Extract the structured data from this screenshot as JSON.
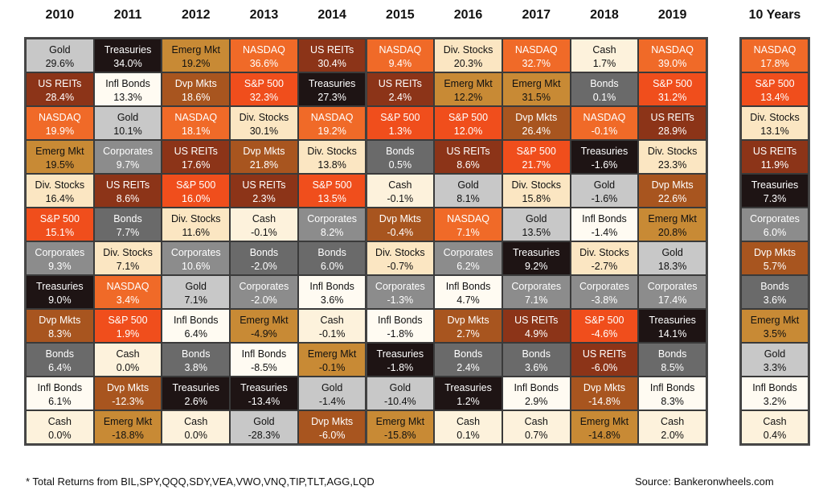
{
  "chart_data": {
    "type": "table",
    "years": [
      "2010",
      "2011",
      "2012",
      "2013",
      "2014",
      "2015",
      "2016",
      "2017",
      "2018",
      "2019"
    ],
    "summary_header": "10 Years",
    "columns": [
      [
        [
          "Gold",
          "29.6%"
        ],
        [
          "US REITs",
          "28.4%"
        ],
        [
          "NASDAQ",
          "19.9%"
        ],
        [
          "Emerg Mkt",
          "19.5%"
        ],
        [
          "Div. Stocks",
          "16.4%"
        ],
        [
          "S&P 500",
          "15.1%"
        ],
        [
          "Corporates",
          "9.3%"
        ],
        [
          "Treasuries",
          "9.0%"
        ],
        [
          "Dvp Mkts",
          "8.3%"
        ],
        [
          "Bonds",
          "6.4%"
        ],
        [
          "Infl Bonds",
          "6.1%"
        ],
        [
          "Cash",
          "0.0%"
        ]
      ],
      [
        [
          "Treasuries",
          "34.0%"
        ],
        [
          "Infl Bonds",
          "13.3%"
        ],
        [
          "Gold",
          "10.1%"
        ],
        [
          "Corporates",
          "9.7%"
        ],
        [
          "US REITs",
          "8.6%"
        ],
        [
          "Bonds",
          "7.7%"
        ],
        [
          "Div. Stocks",
          "7.1%"
        ],
        [
          "NASDAQ",
          "3.4%"
        ],
        [
          "S&P 500",
          "1.9%"
        ],
        [
          "Cash",
          "0.0%"
        ],
        [
          "Dvp Mkts",
          "-12.3%"
        ],
        [
          "Emerg Mkt",
          "-18.8%"
        ]
      ],
      [
        [
          "Emerg Mkt",
          "19.2%"
        ],
        [
          "Dvp Mkts",
          "18.6%"
        ],
        [
          "NASDAQ",
          "18.1%"
        ],
        [
          "US REITs",
          "17.6%"
        ],
        [
          "S&P 500",
          "16.0%"
        ],
        [
          "Div. Stocks",
          "11.6%"
        ],
        [
          "Corporates",
          "10.6%"
        ],
        [
          "Gold",
          "7.1%"
        ],
        [
          "Infl Bonds",
          "6.4%"
        ],
        [
          "Bonds",
          "3.8%"
        ],
        [
          "Treasuries",
          "2.6%"
        ],
        [
          "Cash",
          "0.0%"
        ]
      ],
      [
        [
          "NASDAQ",
          "36.6%"
        ],
        [
          "S&P 500",
          "32.3%"
        ],
        [
          "Div. Stocks",
          "30.1%"
        ],
        [
          "Dvp Mkts",
          "21.8%"
        ],
        [
          "US REITs",
          "2.3%"
        ],
        [
          "Cash",
          "-0.1%"
        ],
        [
          "Bonds",
          "-2.0%"
        ],
        [
          "Corporates",
          "-2.0%"
        ],
        [
          "Emerg Mkt",
          "-4.9%"
        ],
        [
          "Infl Bonds",
          "-8.5%"
        ],
        [
          "Treasuries",
          "-13.4%"
        ],
        [
          "Gold",
          "-28.3%"
        ]
      ],
      [
        [
          "US REITs",
          "30.4%"
        ],
        [
          "Treasuries",
          "27.3%"
        ],
        [
          "NASDAQ",
          "19.2%"
        ],
        [
          "Div. Stocks",
          "13.8%"
        ],
        [
          "S&P 500",
          "13.5%"
        ],
        [
          "Corporates",
          "8.2%"
        ],
        [
          "Bonds",
          "6.0%"
        ],
        [
          "Infl Bonds",
          "3.6%"
        ],
        [
          "Cash",
          "-0.1%"
        ],
        [
          "Emerg Mkt",
          "-0.1%"
        ],
        [
          "Gold",
          "-1.4%"
        ],
        [
          "Dvp Mkts",
          "-6.0%"
        ]
      ],
      [
        [
          "NASDAQ",
          "9.4%"
        ],
        [
          "US REITs",
          "2.4%"
        ],
        [
          "S&P 500",
          "1.3%"
        ],
        [
          "Bonds",
          "0.5%"
        ],
        [
          "Cash",
          "-0.1%"
        ],
        [
          "Dvp Mkts",
          "-0.4%"
        ],
        [
          "Div. Stocks",
          "-0.7%"
        ],
        [
          "Corporates",
          "-1.3%"
        ],
        [
          "Infl Bonds",
          "-1.8%"
        ],
        [
          "Treasuries",
          "-1.8%"
        ],
        [
          "Gold",
          "-10.4%"
        ],
        [
          "Emerg Mkt",
          "-15.8%"
        ]
      ],
      [
        [
          "Div. Stocks",
          "20.3%"
        ],
        [
          "Emerg Mkt",
          "12.2%"
        ],
        [
          "S&P 500",
          "12.0%"
        ],
        [
          "US REITs",
          "8.6%"
        ],
        [
          "Gold",
          "8.1%"
        ],
        [
          "NASDAQ",
          "7.1%"
        ],
        [
          "Corporates",
          "6.2%"
        ],
        [
          "Infl Bonds",
          "4.7%"
        ],
        [
          "Dvp Mkts",
          "2.7%"
        ],
        [
          "Bonds",
          "2.4%"
        ],
        [
          "Treasuries",
          "1.2%"
        ],
        [
          "Cash",
          "0.1%"
        ]
      ],
      [
        [
          "NASDAQ",
          "32.7%"
        ],
        [
          "Emerg Mkt",
          "31.5%"
        ],
        [
          "Dvp Mkts",
          "26.4%"
        ],
        [
          "S&P 500",
          "21.7%"
        ],
        [
          "Div. Stocks",
          "15.8%"
        ],
        [
          "Gold",
          "13.5%"
        ],
        [
          "Treasuries",
          "9.2%"
        ],
        [
          "Corporates",
          "7.1%"
        ],
        [
          "US REITs",
          "4.9%"
        ],
        [
          "Bonds",
          "3.6%"
        ],
        [
          "Infl Bonds",
          "2.9%"
        ],
        [
          "Cash",
          "0.7%"
        ]
      ],
      [
        [
          "Cash",
          "1.7%"
        ],
        [
          "Bonds",
          "0.1%"
        ],
        [
          "NASDAQ",
          "-0.1%"
        ],
        [
          "Treasuries",
          "-1.6%"
        ],
        [
          "Gold",
          "-1.6%"
        ],
        [
          "Infl Bonds",
          "-1.4%"
        ],
        [
          "Div. Stocks",
          "-2.7%"
        ],
        [
          "Corporates",
          "-3.8%"
        ],
        [
          "S&P 500",
          "-4.6%"
        ],
        [
          "US REITs",
          "-6.0%"
        ],
        [
          "Dvp Mkts",
          "-14.8%"
        ],
        [
          "Emerg Mkt",
          "-14.8%"
        ]
      ],
      [
        [
          "NASDAQ",
          "39.0%"
        ],
        [
          "S&P 500",
          "31.2%"
        ],
        [
          "US REITs",
          "28.9%"
        ],
        [
          "Div. Stocks",
          "23.3%"
        ],
        [
          "Dvp Mkts",
          "22.6%"
        ],
        [
          "Emerg Mkt",
          "20.8%"
        ],
        [
          "Gold",
          "18.3%"
        ],
        [
          "Corporates",
          "17.4%"
        ],
        [
          "Treasuries",
          "14.1%"
        ],
        [
          "Bonds",
          "8.5%"
        ],
        [
          "Infl Bonds",
          "8.3%"
        ],
        [
          "Cash",
          "2.0%"
        ]
      ]
    ],
    "summary": [
      [
        "NASDAQ",
        "17.8%"
      ],
      [
        "S&P 500",
        "13.4%"
      ],
      [
        "Div. Stocks",
        "13.1%"
      ],
      [
        "US REITs",
        "11.9%"
      ],
      [
        "Treasuries",
        "7.3%"
      ],
      [
        "Corporates",
        "6.0%"
      ],
      [
        "Dvp Mkts",
        "5.7%"
      ],
      [
        "Bonds",
        "3.6%"
      ],
      [
        "Emerg Mkt",
        "3.5%"
      ],
      [
        "Gold",
        "3.3%"
      ],
      [
        "Infl Bonds",
        "3.2%"
      ],
      [
        "Cash",
        "0.4%"
      ]
    ],
    "asset_colors": {
      "Gold": {
        "bg": "#c8c8c8",
        "fg": "#111111"
      },
      "Treasuries": {
        "bg": "#1e1414",
        "fg": "#ffffff"
      },
      "Emerg Mkt": {
        "bg": "#c88a35",
        "fg": "#111111"
      },
      "NASDAQ": {
        "bg": "#f06a28",
        "fg": "#ffffff"
      },
      "US REITs": {
        "bg": "#8c3418",
        "fg": "#ffffff"
      },
      "Div. Stocks": {
        "bg": "#fbe6c2",
        "fg": "#111111"
      },
      "Cash": {
        "bg": "#fdf2dc",
        "fg": "#111111"
      },
      "Infl Bonds": {
        "bg": "#fffbf2",
        "fg": "#111111"
      },
      "Dvp Mkts": {
        "bg": "#a8551f",
        "fg": "#ffffff"
      },
      "S&P 500": {
        "bg": "#f04e1c",
        "fg": "#ffffff"
      },
      "Corporates": {
        "bg": "#8c8c8c",
        "fg": "#ffffff"
      },
      "Bonds": {
        "bg": "#6a6a6a",
        "fg": "#ffffff"
      }
    }
  },
  "footnote": "* Total Returns from BIL,SPY,QQQ,SDY,VEA,VWO,VNQ,TIP,TLT,AGG,LQD",
  "source": "Source: Bankeronwheels.com"
}
